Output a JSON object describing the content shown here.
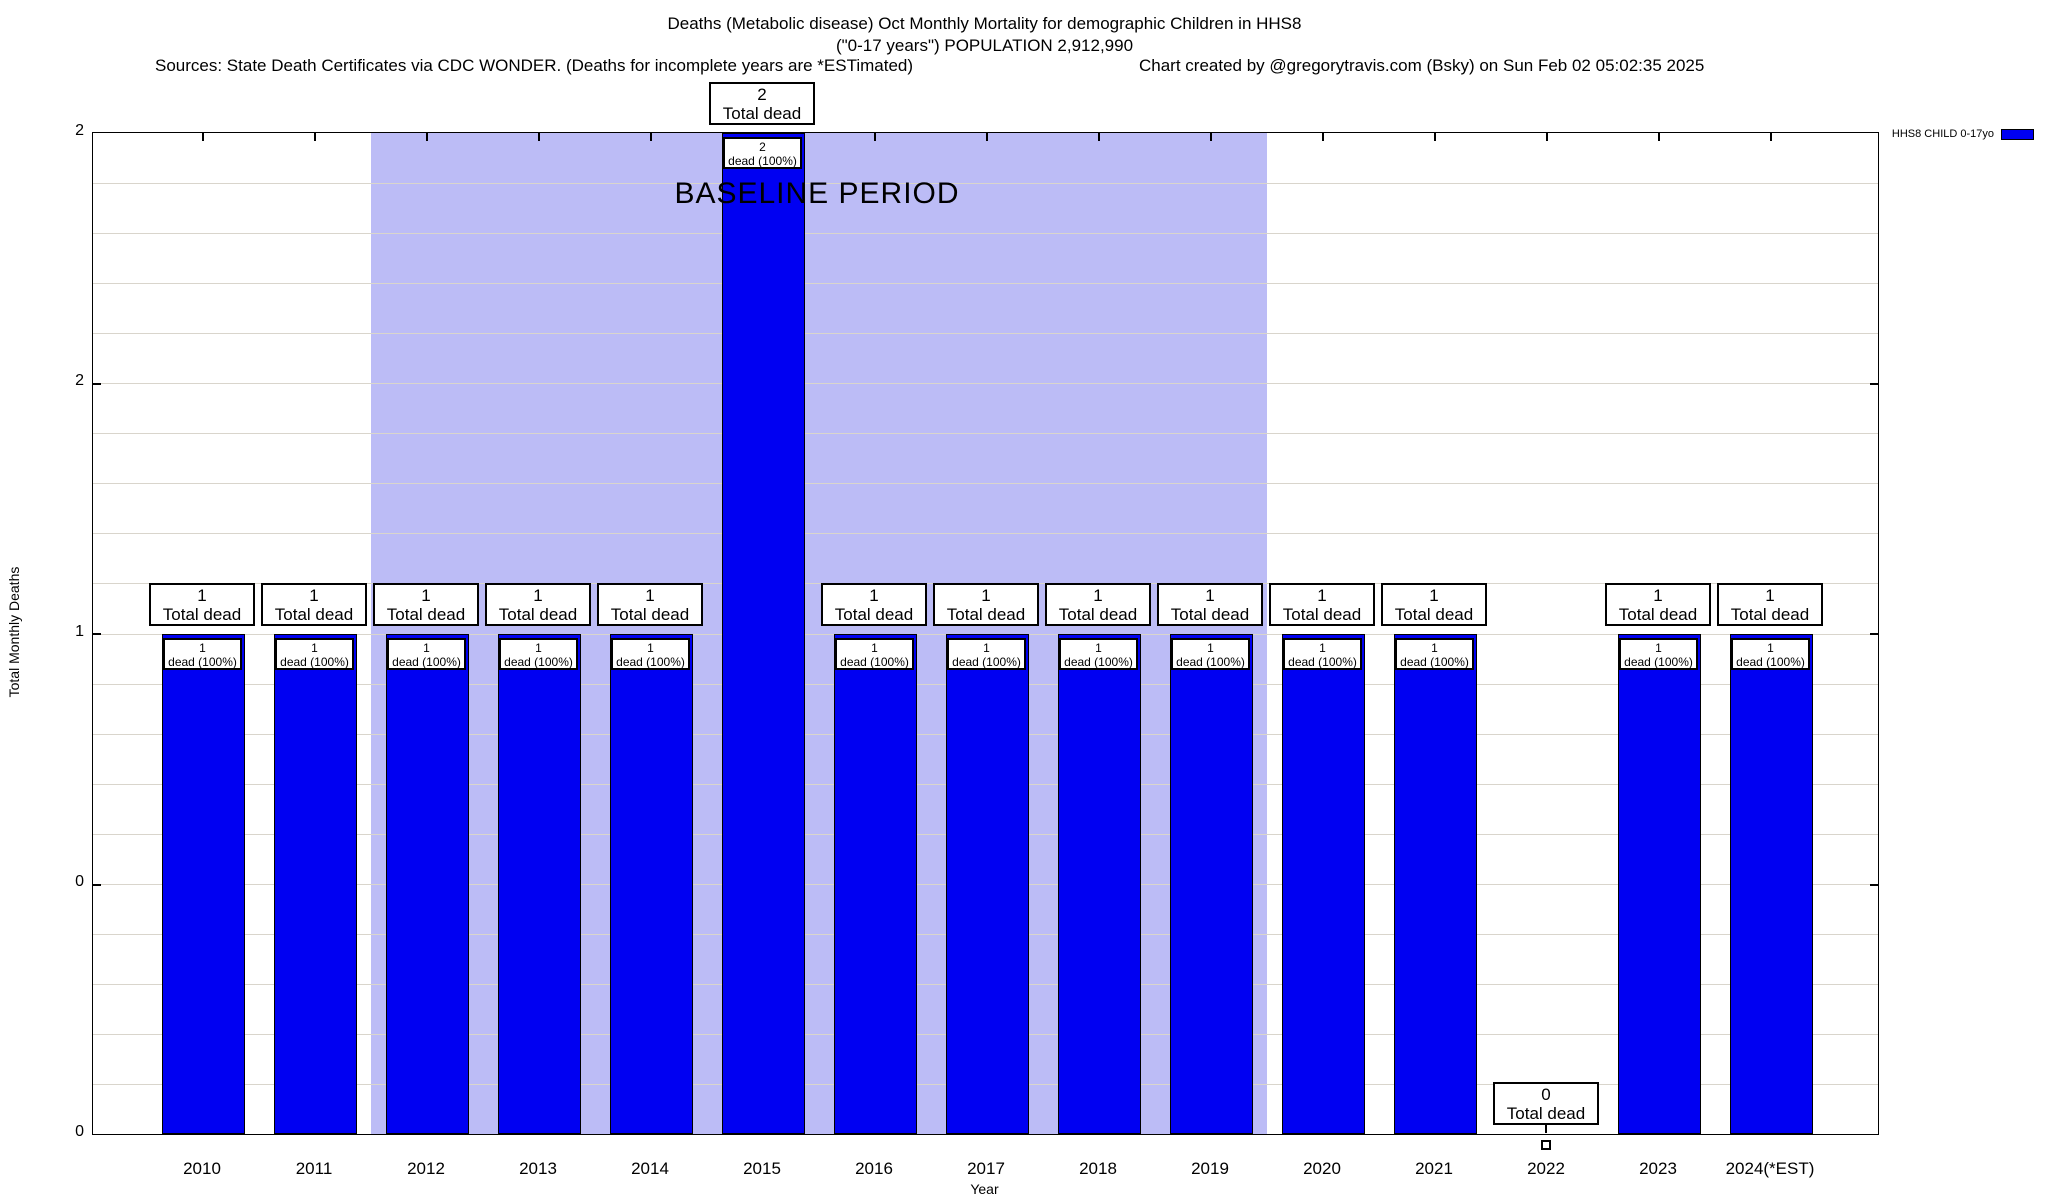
{
  "header": {
    "title_line1": "Deaths (Metabolic disease) Oct Monthly Mortality for demographic Children in HHS8",
    "title_line2": "(\"0-17 years\") POPULATION 2,912,990",
    "sources_note": "Sources: State Death Certificates via CDC WONDER. (Deaths for incomplete years are *ESTimated)",
    "credit_note": "Chart created by @gregorytravis.com (Bsky) on Sun Feb 02 05:02:35 2025"
  },
  "chart_data": {
    "type": "bar",
    "title": "Deaths (Metabolic disease) Oct Monthly Mortality for demographic Children in HHS8 (\"0-17 years\") POPULATION 2,912,990",
    "xlabel": "Year",
    "ylabel": "Total Monthly Deaths",
    "ylim": [
      0,
      2
    ],
    "ytick_values": [
      0,
      0.5,
      1,
      1.5,
      2
    ],
    "ytick_labels_bottom_to_top": [
      "0",
      "0",
      "1",
      "2",
      "2"
    ],
    "grid": "horizontal gridlines every 0.1, light gray, plot box on all sides",
    "legend_position": "top-right, outside plot",
    "categories": [
      "2010",
      "2011",
      "2012",
      "2013",
      "2014",
      "2015",
      "2016",
      "2017",
      "2018",
      "2019",
      "2020",
      "2021",
      "2022",
      "2023",
      "2024(*EST)"
    ],
    "values": [
      1,
      1,
      1,
      1,
      1,
      2,
      1,
      1,
      1,
      1,
      1,
      1,
      0,
      1,
      1
    ],
    "bars": [
      {
        "year": "2010",
        "value": 1
      },
      {
        "year": "2011",
        "value": 1
      },
      {
        "year": "2012",
        "value": 1
      },
      {
        "year": "2013",
        "value": 1
      },
      {
        "year": "2014",
        "value": 1
      },
      {
        "year": "2015",
        "value": 2
      },
      {
        "year": "2016",
        "value": 1
      },
      {
        "year": "2017",
        "value": 1
      },
      {
        "year": "2018",
        "value": 1
      },
      {
        "year": "2019",
        "value": 1
      },
      {
        "year": "2020",
        "value": 1
      },
      {
        "year": "2021",
        "value": 1
      },
      {
        "year": "2022",
        "value": 0
      },
      {
        "year": "2023",
        "value": 1
      },
      {
        "year": "2024(*EST)",
        "value": 1
      }
    ],
    "total_caption": "Total dead",
    "inner_caption": "dead (100%)",
    "baseline": {
      "label": "BASELINE PERIOD",
      "from": "2012",
      "to": "2019",
      "color": "#bcbcf6"
    },
    "legend": [
      {
        "label": "HHS8 CHILD 0-17yo",
        "color": "#0000f2"
      }
    ],
    "colors": {
      "bar": "#0000f2",
      "baseline_shading": "#bcbcf6",
      "gridline": "#d9d5cc",
      "text": "#000000"
    }
  }
}
